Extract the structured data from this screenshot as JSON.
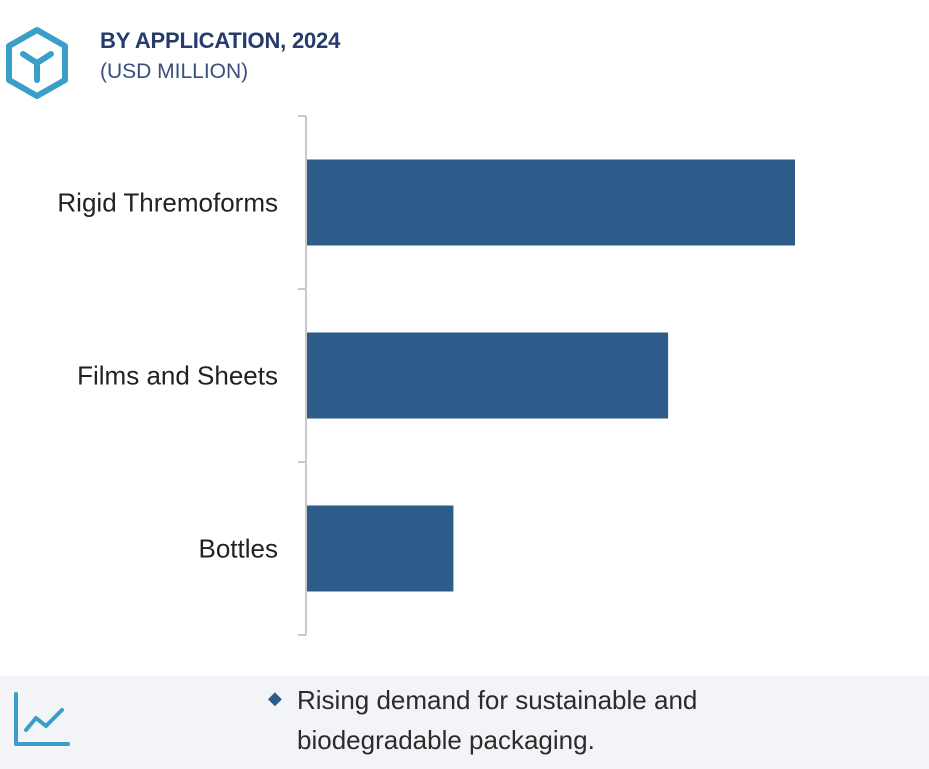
{
  "header": {
    "title": "BY APPLICATION, 2024",
    "subtitle": "(USD MILLION)",
    "logo_icon": "cube-hexagon-icon"
  },
  "chart_data": {
    "type": "bar",
    "orientation": "horizontal",
    "categories": [
      "Rigid Thremoforms",
      "Films and Sheets",
      "Bottles"
    ],
    "values": [
      100,
      74,
      30
    ],
    "bar_color": "#2e5c8a",
    "value_labels_shown": false,
    "grid": false
  },
  "footer": {
    "trend_icon": "trend-line-icon",
    "bullet_icon": "diamond-bullet-icon",
    "text": "Rising demand for sustainable and biodegradable packaging."
  },
  "colors": {
    "accent": "#2e5c8a",
    "logo": "#3a9fc8",
    "title": "#243b6b",
    "footer_bg": "#f3f4f7"
  }
}
